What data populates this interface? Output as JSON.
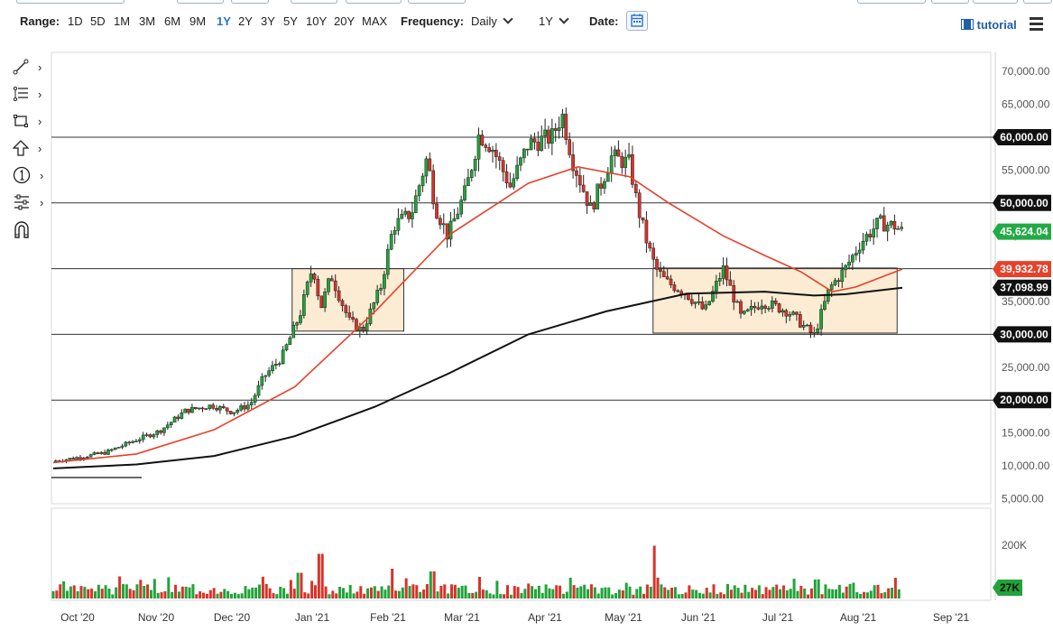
{
  "toolbar": {
    "range_label": "Range:",
    "ranges": [
      "1D",
      "5D",
      "1M",
      "3M",
      "6M",
      "9M",
      "1Y",
      "2Y",
      "3Y",
      "5Y",
      "10Y",
      "20Y",
      "MAX"
    ],
    "active_range": "1Y",
    "frequency_label": "Frequency:",
    "frequency_value": "Daily",
    "period_value": "1Y",
    "date_label": "Date:",
    "tutorial_label": "tutorial"
  },
  "tools": [
    "trend-line-icon",
    "fibonacci-icon",
    "rectangle-icon",
    "arrow-up-icon",
    "counter-icon",
    "tools-icon",
    "magnet-icon"
  ],
  "chart_data": {
    "type": "candlestick",
    "title": "",
    "y_ticks": [
      70000,
      65000,
      55000,
      50000,
      45000,
      35000,
      30000,
      25000,
      15000,
      10000,
      5000
    ],
    "y_tick_labels": [
      "70,000.00",
      "65,000.00",
      "55,000.00",
      "50,000.00",
      "45,000.00",
      "35,000.00",
      "30,000.00",
      "25,000.00",
      "15,000.00",
      "10,000.00",
      "5,000.00"
    ],
    "ylim": [
      4000,
      72000
    ],
    "x_labels": [
      "Oct '20",
      "Nov '20",
      "Dec '20",
      "Jan '21",
      "Feb '21",
      "Mar '21",
      "Apr '21",
      "May '21",
      "Jun '21",
      "Jul '21",
      "Aug '21",
      "Sep '21"
    ],
    "horizontal_lines": [
      60000,
      50000,
      40000,
      30000,
      20000
    ],
    "price_tags": [
      {
        "label": "60,000.00",
        "value": 60000,
        "color": "#111111"
      },
      {
        "label": "50,000.00",
        "value": 50000,
        "color": "#111111"
      },
      {
        "label": "45,624.04",
        "value": 45624.04,
        "color": "#22aa44"
      },
      {
        "label": "39,932.78",
        "value": 39932.78,
        "color": "#e8402a"
      },
      {
        "label": "37,098.99",
        "value": 37098.99,
        "color": "#111111"
      },
      {
        "label": "30,000.00",
        "value": 30000,
        "color": "#111111"
      },
      {
        "label": "20,000.00",
        "value": 20000,
        "color": "#111111"
      }
    ],
    "close_path": [
      [
        "2020-09-30",
        10700
      ],
      [
        "2020-10-10",
        11300
      ],
      [
        "2020-10-20",
        12000
      ],
      [
        "2020-10-31",
        13800
      ],
      [
        "2020-11-10",
        15300
      ],
      [
        "2020-11-20",
        18400
      ],
      [
        "2020-11-30",
        19200
      ],
      [
        "2020-12-08",
        18200
      ],
      [
        "2020-12-15",
        19400
      ],
      [
        "2020-12-20",
        23500
      ],
      [
        "2020-12-27",
        26500
      ],
      [
        "2021-01-03",
        33000
      ],
      [
        "2021-01-08",
        40500
      ],
      [
        "2021-01-11",
        34000
      ],
      [
        "2021-01-15",
        39000
      ],
      [
        "2021-01-22",
        32000
      ],
      [
        "2021-01-27",
        30500
      ],
      [
        "2021-02-03",
        37000
      ],
      [
        "2021-02-08",
        46500
      ],
      [
        "2021-02-15",
        48500
      ],
      [
        "2021-02-21",
        57000
      ],
      [
        "2021-02-24",
        49500
      ],
      [
        "2021-03-01",
        45000
      ],
      [
        "2021-03-08",
        52000
      ],
      [
        "2021-03-13",
        60500
      ],
      [
        "2021-03-18",
        58500
      ],
      [
        "2021-03-25",
        52500
      ],
      [
        "2021-04-01",
        59000
      ],
      [
        "2021-04-10",
        60000
      ],
      [
        "2021-04-14",
        63500
      ],
      [
        "2021-04-18",
        56500
      ],
      [
        "2021-04-25",
        49000
      ],
      [
        "2021-05-03",
        57000
      ],
      [
        "2021-05-10",
        56000
      ],
      [
        "2021-05-13",
        49500
      ],
      [
        "2021-05-17",
        43500
      ],
      [
        "2021-05-20",
        40000
      ],
      [
        "2021-05-24",
        38000
      ],
      [
        "2021-05-31",
        36500
      ],
      [
        "2021-06-08",
        33500
      ],
      [
        "2021-06-15",
        40000
      ],
      [
        "2021-06-22",
        32500
      ],
      [
        "2021-06-30",
        35000
      ],
      [
        "2021-07-10",
        33500
      ],
      [
        "2021-07-20",
        29800
      ],
      [
        "2021-07-26",
        37000
      ],
      [
        "2021-08-01",
        40000
      ],
      [
        "2021-08-07",
        44000
      ],
      [
        "2021-08-14",
        47000
      ],
      [
        "2021-08-20",
        46500
      ],
      [
        "2021-08-23",
        45624
      ]
    ],
    "ma_50": [
      [
        "2020-09-30",
        10500
      ],
      [
        "2020-11-01",
        11800
      ],
      [
        "2020-12-01",
        15500
      ],
      [
        "2021-01-01",
        22000
      ],
      [
        "2021-02-01",
        33500
      ],
      [
        "2021-03-01",
        45000
      ],
      [
        "2021-04-01",
        53000
      ],
      [
        "2021-04-20",
        55500
      ],
      [
        "2021-05-10",
        54000
      ],
      [
        "2021-05-25",
        50000
      ],
      [
        "2021-06-15",
        45000
      ],
      [
        "2021-07-01",
        42000
      ],
      [
        "2021-07-15",
        39500
      ],
      [
        "2021-07-27",
        36500
      ],
      [
        "2021-08-05",
        37200
      ],
      [
        "2021-08-23",
        39932.78
      ]
    ],
    "ma_200": [
      [
        "2020-09-30",
        9600
      ],
      [
        "2020-11-01",
        10200
      ],
      [
        "2020-12-01",
        11500
      ],
      [
        "2021-01-01",
        14500
      ],
      [
        "2021-02-01",
        19000
      ],
      [
        "2021-03-01",
        24000
      ],
      [
        "2021-04-01",
        30000
      ],
      [
        "2021-05-01",
        33500
      ],
      [
        "2021-06-01",
        36200
      ],
      [
        "2021-07-01",
        36500
      ],
      [
        "2021-07-20",
        35900
      ],
      [
        "2021-08-01",
        36100
      ],
      [
        "2021-08-23",
        37098.99
      ]
    ],
    "zones": [
      {
        "start": "2020-12-31",
        "end": "2021-02-12",
        "low": 30500,
        "high": 40000
      },
      {
        "start": "2021-05-19",
        "end": "2021-08-21",
        "low": 30200,
        "high": 40100
      }
    ],
    "volume_axis_labels": [
      "200K"
    ],
    "volume_tag": "27K",
    "volume_spikes": [
      {
        "date": "2021-01-11",
        "value": 165000
      },
      {
        "date": "2021-05-19",
        "value": 195000
      },
      {
        "date": "2021-01-03",
        "value": 95000
      },
      {
        "date": "2021-02-08",
        "value": 110000
      },
      {
        "date": "2021-02-23",
        "value": 100000
      }
    ]
  }
}
